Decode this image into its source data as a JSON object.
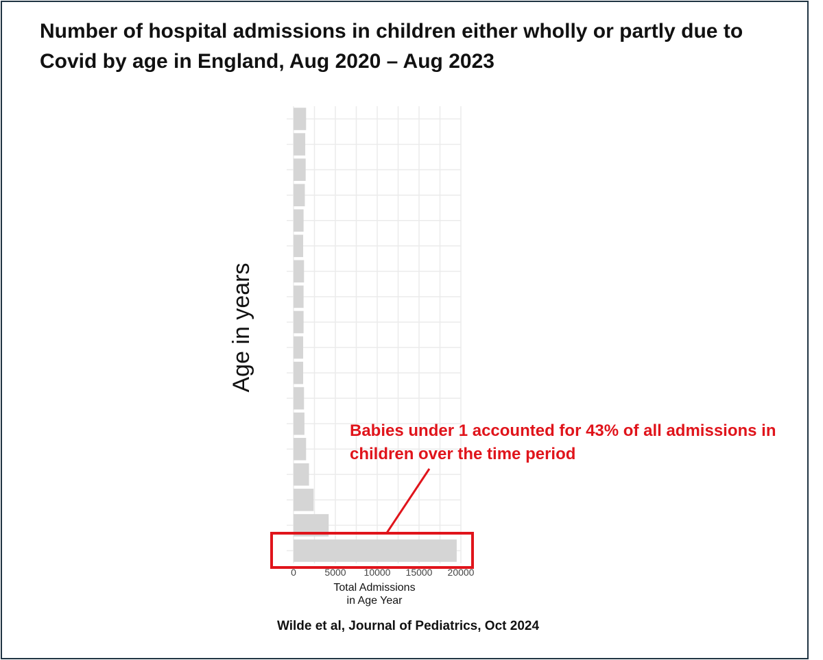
{
  "title": "Number of hospital admissions in children either wholly or partly due to Covid by age in England, Aug 2020 – Aug 2023",
  "source": "Wilde et al, Journal of Pediatrics, Oct 2024",
  "colors": {
    "bar": "#d5d5d5",
    "grid": "#ebebeb",
    "highlight": "#e0141b",
    "frame": "#1f3342"
  },
  "chart_data": {
    "type": "bar",
    "orientation": "horizontal",
    "ylabel": "Age in years",
    "xlabel_lines": [
      "Total Admissions",
      "in Age Year"
    ],
    "xlim": [
      0,
      20000
    ],
    "xticks": [
      "0",
      "5000",
      "10000",
      "15000",
      "20000"
    ],
    "xtick_values": [
      0,
      5000,
      10000,
      15000,
      20000
    ],
    "age_order": "top = oldest, bottom = youngest (under 1)",
    "values_top_to_bottom": [
      1500,
      1400,
      1450,
      1350,
      1200,
      1150,
      1250,
      1200,
      1200,
      1150,
      1150,
      1250,
      1300,
      1500,
      1850,
      2400,
      4200,
      19500
    ],
    "grid": true,
    "legend": "none",
    "highlight_index": 17,
    "annotation": "Babies under 1 accounted for 43% of all admissions in children over the time period"
  }
}
